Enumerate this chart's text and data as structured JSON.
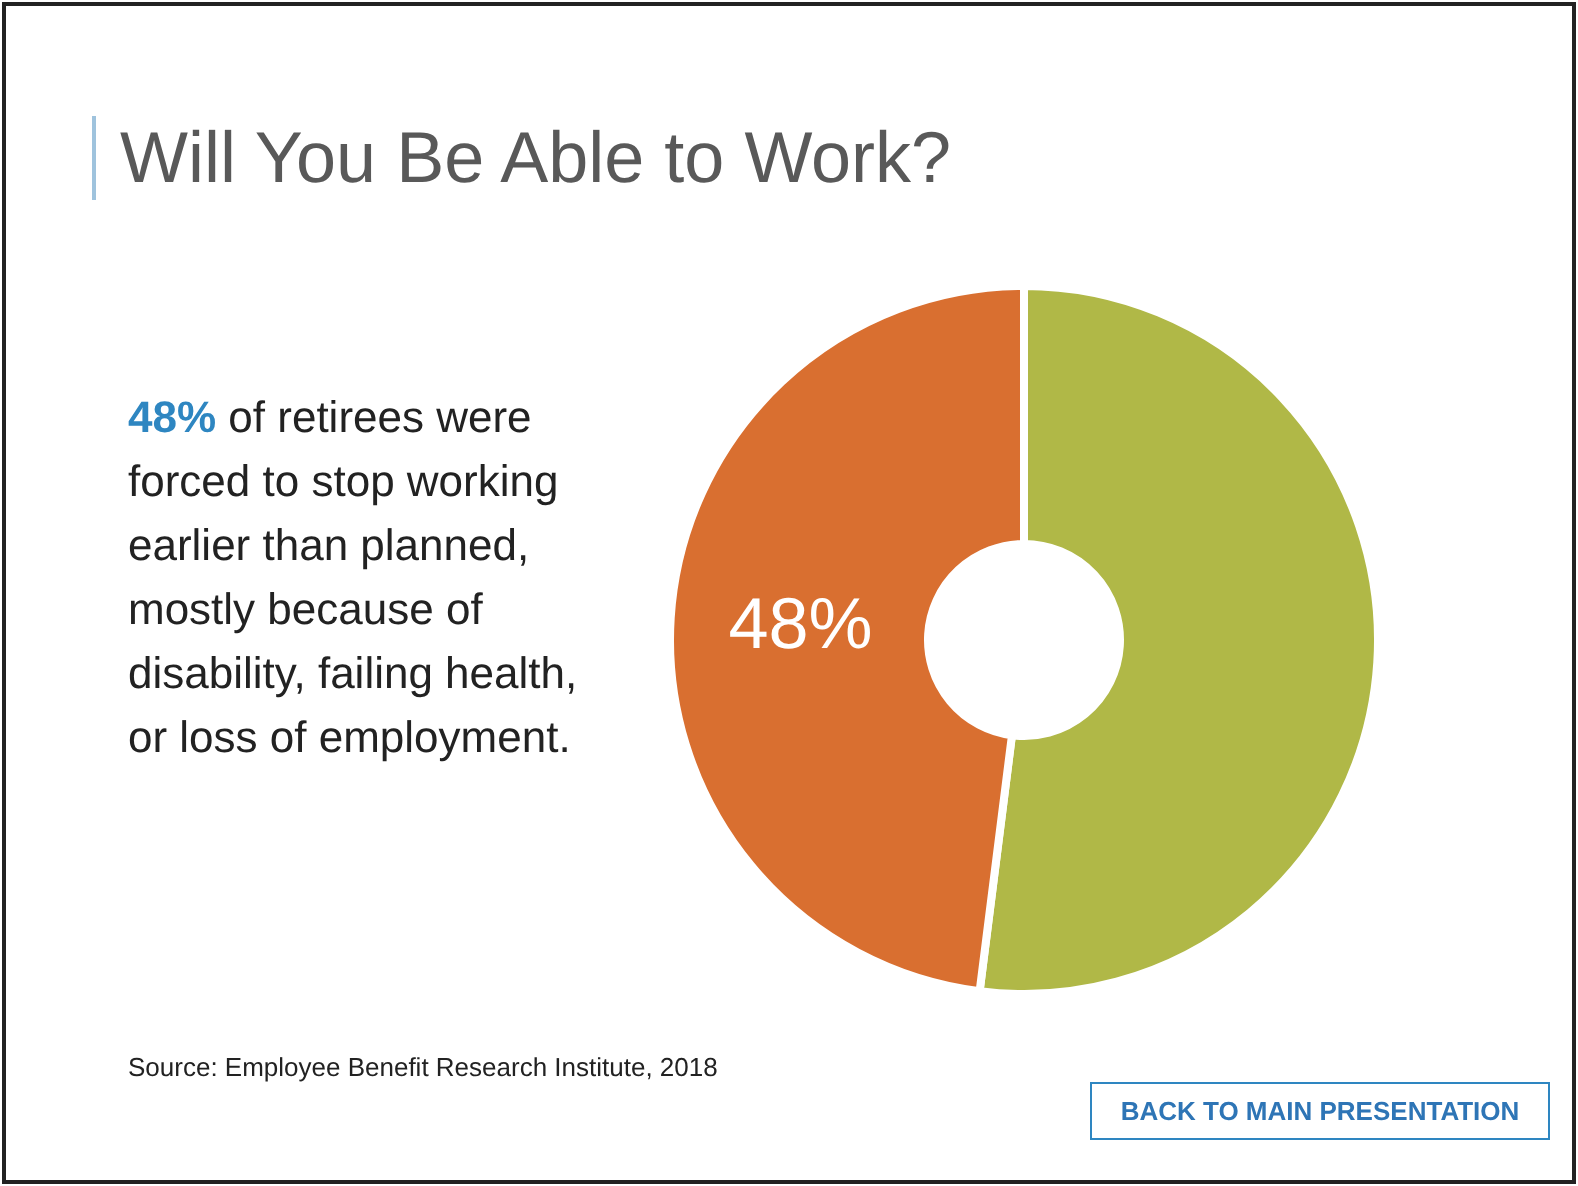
{
  "chart_data": {
    "type": "donut",
    "title": "Will You Be Able to Work?",
    "categories": [
      null,
      null
    ],
    "values": [
      52,
      48
    ],
    "colors": [
      "#b0b847",
      "#d96f30"
    ],
    "value_labels": [
      null,
      "48%"
    ],
    "annotations": [
      "48%",
      "of retirees were forced to stop working earlier than planned, mostly because of disability, failing health, or loss of employment.",
      "Source:  Employee Benefit Research Institute, 2018",
      "BACK TO MAIN PRESENTATION"
    ]
  }
}
